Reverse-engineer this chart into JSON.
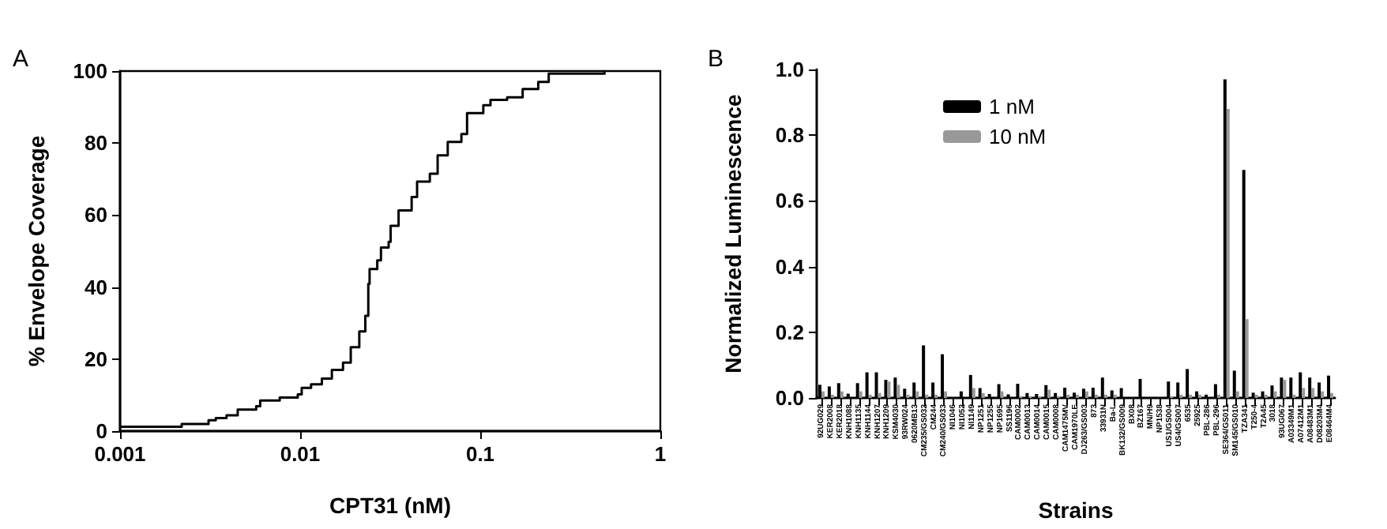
{
  "chart_data": [
    {
      "type": "step",
      "xlabel": "CPT31 (nM)",
      "ylabel": "% Envelope Coverage",
      "annotations": [
        "A"
      ],
      "log": "x",
      "xlim": [
        0.001,
        1
      ],
      "xticks": [
        0.001,
        0.01,
        0.1,
        1
      ],
      "ylim": [
        0,
        100
      ],
      "yticks": [
        0,
        20,
        40,
        60,
        80,
        100
      ],
      "series": [
        {
          "color": "#000000",
          "x": [
            0.001,
            0.0022,
            0.0031,
            0.0034,
            0.0039,
            0.0045,
            0.0057,
            0.006,
            0.0077,
            0.0097,
            0.0102,
            0.0115,
            0.0132,
            0.015,
            0.0173,
            0.0191,
            0.0213,
            0.023,
            0.0239,
            0.0243,
            0.0268,
            0.0281,
            0.031,
            0.0318,
            0.0352,
            0.0416,
            0.0446,
            0.0525,
            0.058,
            0.066,
            0.0786,
            0.0845,
            0.104,
            0.114,
            0.141,
            0.172,
            0.21,
            0.24,
            0.49
          ],
          "values": [
            1.2,
            2,
            3,
            3.6,
            4.4,
            6,
            6.9,
            8.5,
            9.3,
            10.2,
            12,
            13,
            14.6,
            17,
            19,
            23.3,
            27.7,
            32,
            40.9,
            45,
            47.4,
            51,
            52.6,
            57,
            61.3,
            65,
            69.3,
            71.5,
            76.6,
            80.3,
            82.5,
            88.3,
            90.5,
            92,
            92.7,
            95,
            97,
            99.3,
            100
          ]
        }
      ]
    },
    {
      "type": "bar",
      "xlabel": "Strains",
      "ylabel": "Normalized Luminescence",
      "annotations": [
        "B"
      ],
      "legend": "top left",
      "ylim": [
        0,
        1
      ],
      "yticks": [
        {
          "value": 0,
          "label": "0.0"
        },
        {
          "value": 0.2,
          "label": "0.2"
        },
        {
          "value": 0.4,
          "label": "0.4"
        },
        {
          "value": 0.6,
          "label": "0.6"
        },
        {
          "value": 0.8,
          "label": "0.8"
        },
        {
          "value": 1,
          "label": "1.0"
        }
      ],
      "categories": [
        "92UG029",
        "KER2008",
        "KER2018",
        "KNH1088",
        "KNH1135",
        "KNH1144",
        "KNH1207",
        "KNH1209",
        "KSM4030",
        "93RW024",
        "0620MB13",
        "CM235/GS032",
        "CM244",
        "CM240/GS033",
        "NI1046",
        "NI1052",
        "NI1149",
        "NP1251",
        "NP1255",
        "NP1695",
        "SS1196",
        "CAM0002",
        "CAM0013",
        "CAM0014",
        "CAM0015",
        "CAM0008",
        "CAM1475MV",
        "CAM1970LE",
        "DJ263/GS003",
        "873",
        "33931N",
        "Ba-L",
        "BK132/GS009",
        "BX08",
        "BZ167",
        "MN/H9",
        "NP1538",
        "US1/GS004",
        "US4/GS007",
        "6535",
        "25925",
        "PBL-286",
        "PBL-296",
        "SE364/GS011",
        "SM145/GS010",
        "TZA341",
        "T250-4",
        "T2A45",
        "3018",
        "93UG067",
        "A03349M1",
        "A07412M1",
        "A08483M1",
        "D08203M4",
        "E08464M4"
      ],
      "series": [
        {
          "name": "1 nM",
          "color": "#000000",
          "values": [
            0.04,
            0.035,
            0.045,
            0.013,
            0.045,
            0.078,
            0.078,
            0.055,
            0.062,
            0.028,
            0.047,
            0.16,
            0.047,
            0.133,
            null,
            0.02,
            0.07,
            0.03,
            0.012,
            0.042,
            0.011,
            0.043,
            0.015,
            0.012,
            0.039,
            0.015,
            0.031,
            0.016,
            0.028,
            0.031,
            0.062,
            0.023,
            0.03,
            0,
            0.058,
            null,
            null,
            0.05,
            0.047,
            0.088,
            0.02,
            0.01,
            0.042,
            0.97,
            0.083,
            0.694,
            0.016,
            0.02,
            0.038,
            0.062,
            0.062,
            0.078,
            0.062,
            0.047,
            0.068
          ]
        },
        {
          "name": "10 nM",
          "color": "#999999",
          "values": [
            0.02,
            0.01,
            0.02,
            0,
            0.02,
            0.01,
            0.015,
            0.05,
            0.04,
            0.01,
            0.02,
            0.01,
            0.01,
            0.02,
            0,
            0,
            0.03,
            0.015,
            0,
            0.02,
            0,
            0.005,
            0.005,
            0.005,
            0.025,
            0.005,
            0.01,
            0.01,
            0.02,
            0.01,
            0.01,
            0.01,
            0,
            0,
            0,
            0,
            0,
            0.005,
            0.01,
            0.01,
            0.01,
            0,
            0.01,
            0.88,
            0.02,
            0.24,
            0.01,
            0.01,
            0.02,
            0.055,
            0.01,
            0.03,
            0.03,
            0.02,
            0.015
          ]
        }
      ]
    }
  ]
}
